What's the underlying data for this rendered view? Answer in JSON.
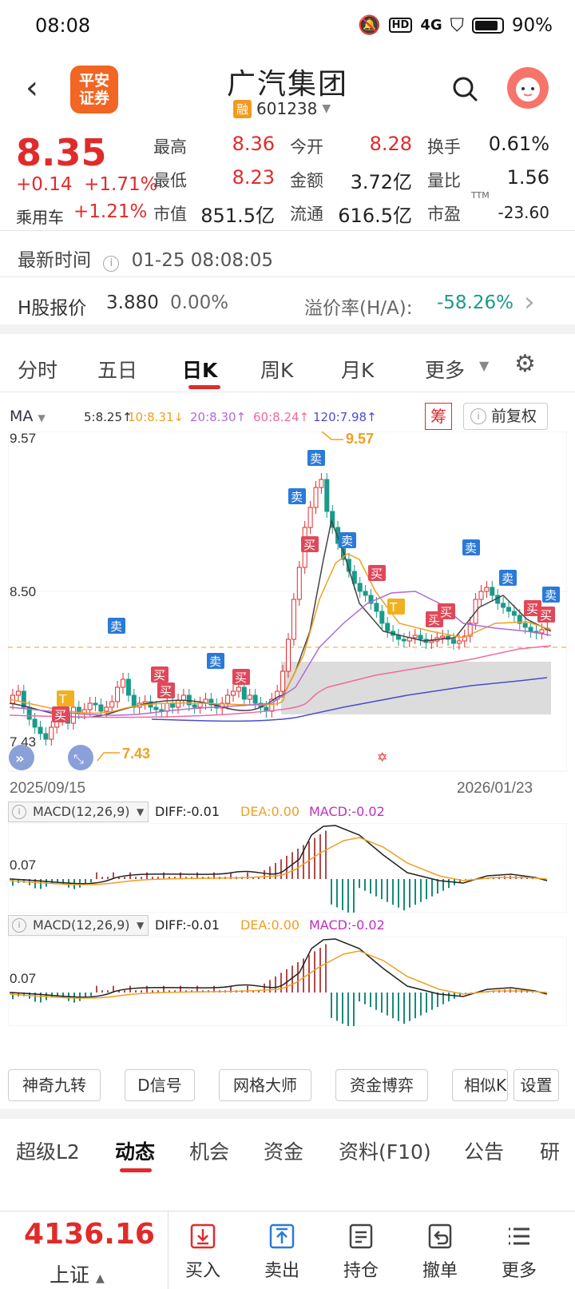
{
  "status_bar": {
    "time": "08:08",
    "battery": "90%",
    "network": "4G"
  },
  "header": {
    "title": "广汽集团",
    "code": "601238",
    "badge": "融",
    "logo_text_1": "平安",
    "logo_text_2": "证券"
  },
  "quote": {
    "price": "8.35",
    "change": "+0.14",
    "change_pct": "+1.71%",
    "sector_label": "乘用车",
    "sector_change": "+1.21%",
    "fields": [
      {
        "label": "最高",
        "value": "8.36"
      },
      {
        "label": "今开",
        "value": "8.28"
      },
      {
        "label": "换手",
        "value": "0.61%"
      },
      {
        "label": "最低",
        "value": "8.23"
      },
      {
        "label": "金额",
        "value": "3.72亿"
      },
      {
        "label": "量比",
        "value": "1.56"
      },
      {
        "label": "市值",
        "value": "851.5亿"
      },
      {
        "label": "流通",
        "value": "616.5亿"
      },
      {
        "label": "市盈",
        "value": "-23.60"
      }
    ],
    "pe_tag": "TTM"
  },
  "update": {
    "label": "最新时间",
    "value": "01-25 08:08:05"
  },
  "hshare": {
    "label": "H股报价",
    "price": "3.880",
    "pct": "0.00%",
    "premium_label": "溢价率(H/A):",
    "premium_value": "-58.26%"
  },
  "tabs": [
    "分时",
    "五日",
    "日K",
    "周K",
    "月K",
    "更多"
  ],
  "active_tab": "日K",
  "ma": {
    "label": "MA",
    "items": [
      {
        "text": "5:8.25↑",
        "color": "#333333"
      },
      {
        "text": "10:8.31↓",
        "color": "#f0a020"
      },
      {
        "text": "20:8.30↑",
        "color": "#b06ad8"
      },
      {
        "text": "60:8.24↑",
        "color": "#f06aa0"
      },
      {
        "text": "120:7.98↑",
        "color": "#4b4bd0"
      }
    ],
    "chip_label": "筹",
    "adjust_label": "前复权"
  },
  "kline": {
    "y_max_label": "9.57",
    "y_mid_label": "8.50",
    "y_min_label": "7.43",
    "high_marker": "9.57",
    "low_marker": "7.43",
    "date_start": "2025/09/15",
    "date_end": "2026/01/23",
    "signals": {
      "buy": "买",
      "sell": "卖",
      "t": "T"
    }
  },
  "macd_panels": [
    {
      "title": "MACD(12,26,9)",
      "diff": "DIFF:-0.01",
      "dea": "DEA:0.00",
      "macd": "MACD:-0.02",
      "axis": "0.07"
    },
    {
      "title": "MACD(12,26,9)",
      "diff": "DIFF:-0.01",
      "dea": "DEA:0.00",
      "macd": "MACD:-0.02",
      "axis": "0.07"
    }
  ],
  "tools": [
    "神奇九转",
    "D信号",
    "网格大师",
    "资金博弈",
    "相似K",
    "设置"
  ],
  "subtabs": [
    "超级L2",
    "动态",
    "机会",
    "资金",
    "资料(F10)",
    "公告",
    "研"
  ],
  "active_subtab": "动态",
  "bottom": {
    "index_value": "4136.16",
    "index_name": "上证",
    "nav": [
      "买入",
      "卖出",
      "持仓",
      "撤单",
      "更多"
    ]
  },
  "colors": {
    "up": "#e02b2b",
    "down": "#1a9a8a",
    "accent": "#e02b2b"
  }
}
